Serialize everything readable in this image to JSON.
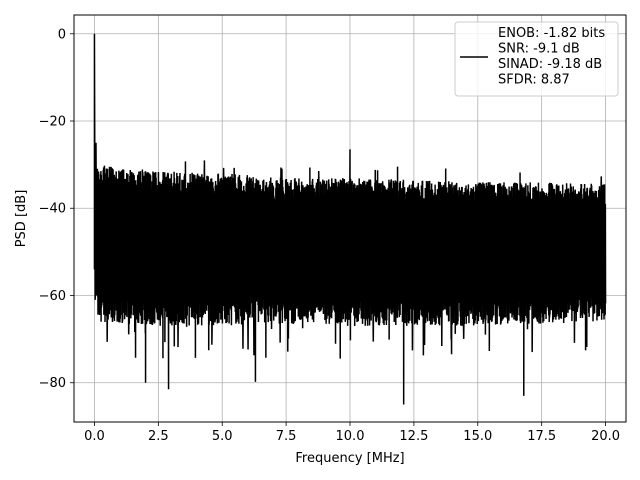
{
  "chart_data": {
    "type": "line",
    "xlabel": "Frequency [MHz]",
    "ylabel": "PSD [dB]",
    "xlim": [
      -0.8,
      20.8
    ],
    "ylim": [
      -89,
      4.3
    ],
    "xticks": [
      0.0,
      2.5,
      5.0,
      7.5,
      10.0,
      12.5,
      15.0,
      17.5,
      20.0
    ],
    "xtick_labels": [
      "0.0",
      "2.5",
      "5.0",
      "7.5",
      "10.0",
      "12.5",
      "15.0",
      "17.5",
      "20.0"
    ],
    "yticks": [
      0,
      -20,
      -40,
      -60,
      -80
    ],
    "ytick_labels": [
      "0",
      "−20",
      "−40",
      "−60",
      "−80"
    ],
    "grid": true,
    "legend_position": "top-right",
    "legend_lines": [
      "ENOB: -1.82 bits",
      "SNR: -9.1 dB",
      "SINAD: -9.18 dB",
      "SFDR: 8.87"
    ],
    "series": [
      {
        "color": "#000000",
        "peak": {
          "x": 0.0,
          "y": 0.0
        },
        "spur": {
          "x": 10.0,
          "y": -26.5
        },
        "noise_floor_upper": {
          "x": [
            0.1,
            2.5,
            5.0,
            7.5,
            10.0,
            12.5,
            15.0,
            17.5,
            20.0
          ],
          "y": [
            -30,
            -31.5,
            -32,
            -33,
            -33,
            -33.5,
            -34,
            -34,
            -34.5
          ]
        },
        "noise_floor_lower": {
          "x": [
            0.1,
            2.5,
            5.0,
            7.5,
            10.0,
            12.5,
            15.0,
            17.5,
            20.0
          ],
          "y": [
            -65,
            -66,
            -66,
            -65.5,
            -66,
            -66,
            -66,
            -65.5,
            -65
          ]
        },
        "deep_minima": {
          "x": [
            2.0,
            2.9,
            6.3,
            12.1,
            16.8
          ],
          "y": [
            -80.0,
            -81.5,
            -79.8,
            -85.0,
            -83.0
          ]
        }
      }
    ]
  }
}
